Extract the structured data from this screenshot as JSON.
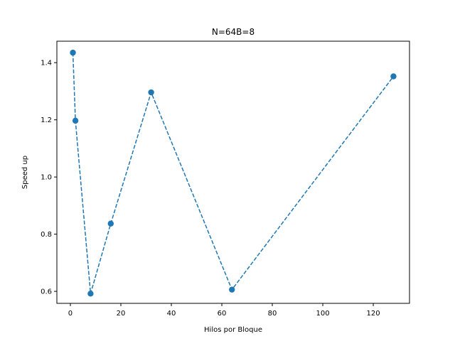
{
  "chart_data": {
    "type": "line",
    "title": "N=64B=8",
    "xlabel": "Hilos por Bloque",
    "ylabel": "Speed up",
    "xlim": [
      -5.35,
      134.35
    ],
    "ylim": [
      0.558,
      1.475
    ],
    "xticks": [
      0,
      20,
      40,
      60,
      80,
      100,
      120
    ],
    "yticks": [
      0.6,
      0.8,
      1.0,
      1.2,
      1.4
    ],
    "xtick_labels": [
      "0",
      "20",
      "40",
      "60",
      "80",
      "100",
      "120"
    ],
    "ytick_labels": [
      "0.6",
      "0.8",
      "1.0",
      "1.2",
      "1.4"
    ],
    "grid": false,
    "series": [
      {
        "color": "#1f77b4",
        "linestyle": "dashed",
        "marker": "circle",
        "x": [
          1,
          2,
          8,
          16,
          32,
          64,
          128
        ],
        "y": [
          1.435,
          1.197,
          0.592,
          0.837,
          1.296,
          0.606,
          1.352
        ]
      }
    ]
  }
}
